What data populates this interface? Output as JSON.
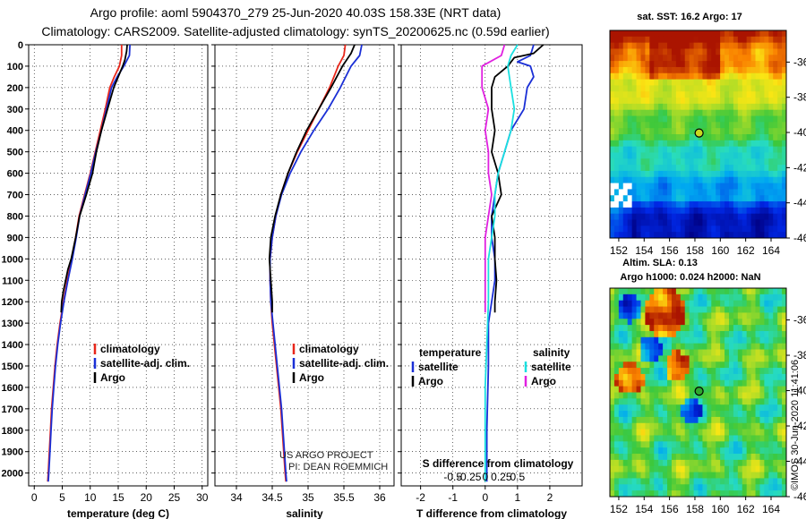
{
  "header": {
    "title_line1": "Argo profile: aoml 5904370_279 25-Jun-2020 40.03S 158.33E (NRT data)",
    "title_line2": "Climatology: CARS2009. Satellite-adjusted climatology: synTS_20200625.nc (0.59d earlier)"
  },
  "colors": {
    "climatology": "#e8261a",
    "satellite_adj": "#1a2fd6",
    "argo": "#000000",
    "satellite_salinity": "#19e0e0",
    "argo_salinity": "#e020e0"
  },
  "chart_data": [
    {
      "type": "line",
      "panel": "temperature",
      "xlabel": "temperature (deg C)",
      "xlim": [
        -1,
        31
      ],
      "x_ticks": [
        0,
        5,
        10,
        15,
        20,
        25,
        30
      ],
      "ylim": [
        2060,
        0
      ],
      "y_ticks": [
        0,
        100,
        200,
        300,
        400,
        500,
        600,
        700,
        800,
        900,
        1000,
        1100,
        1200,
        1300,
        1400,
        1500,
        1600,
        1700,
        1800,
        1900,
        2000
      ],
      "legend": [
        "climatology",
        "satellite-adj. clim.",
        "Argo"
      ],
      "series": [
        {
          "name": "climatology",
          "color": "#e8261a",
          "points": [
            [
              15.6,
              0
            ],
            [
              15.6,
              50
            ],
            [
              15.2,
              100
            ],
            [
              14.3,
              150
            ],
            [
              13.5,
              200
            ],
            [
              12.7,
              300
            ],
            [
              11.8,
              400
            ],
            [
              10.9,
              500
            ],
            [
              10.0,
              600
            ],
            [
              9.0,
              700
            ],
            [
              8.0,
              800
            ],
            [
              7.4,
              900
            ],
            [
              6.7,
              1000
            ],
            [
              5.9,
              1100
            ],
            [
              5.2,
              1200
            ],
            [
              4.6,
              1300
            ],
            [
              4.1,
              1400
            ],
            [
              3.7,
              1500
            ],
            [
              3.4,
              1600
            ],
            [
              3.1,
              1700
            ],
            [
              2.9,
              1800
            ],
            [
              2.7,
              1900
            ],
            [
              2.5,
              2000
            ],
            [
              2.4,
              2040
            ]
          ]
        },
        {
          "name": "satellite-adj. clim.",
          "color": "#1a2fd6",
          "points": [
            [
              17.1,
              0
            ],
            [
              17.0,
              50
            ],
            [
              16.0,
              100
            ],
            [
              14.8,
              150
            ],
            [
              13.8,
              200
            ],
            [
              12.9,
              300
            ],
            [
              12.0,
              400
            ],
            [
              11.0,
              500
            ],
            [
              10.1,
              600
            ],
            [
              9.1,
              700
            ],
            [
              8.1,
              800
            ],
            [
              7.5,
              900
            ],
            [
              6.8,
              1000
            ],
            [
              6.0,
              1100
            ],
            [
              5.3,
              1200
            ],
            [
              4.7,
              1300
            ],
            [
              4.2,
              1400
            ],
            [
              3.8,
              1500
            ],
            [
              3.5,
              1600
            ],
            [
              3.2,
              1700
            ],
            [
              3.0,
              1800
            ],
            [
              2.8,
              1900
            ],
            [
              2.6,
              2000
            ],
            [
              2.5,
              2040
            ]
          ]
        },
        {
          "name": "Argo",
          "color": "#000000",
          "points": [
            [
              16.6,
              0
            ],
            [
              16.5,
              30
            ],
            [
              16.2,
              70
            ],
            [
              15.8,
              100
            ],
            [
              15.0,
              150
            ],
            [
              14.2,
              200
            ],
            [
              13.1,
              300
            ],
            [
              12.0,
              400
            ],
            [
              11.1,
              500
            ],
            [
              10.4,
              600
            ],
            [
              9.3,
              700
            ],
            [
              8.1,
              800
            ],
            [
              7.4,
              900
            ],
            [
              6.6,
              1000
            ],
            [
              6.0,
              1050
            ],
            [
              5.6,
              1100
            ],
            [
              5.2,
              1150
            ],
            [
              4.9,
              1200
            ],
            [
              4.8,
              1250
            ]
          ]
        }
      ]
    },
    {
      "type": "line",
      "panel": "salinity",
      "xlabel": "salinity",
      "xlim": [
        33.7,
        36.2
      ],
      "x_ticks": [
        34,
        34.5,
        35,
        35.5,
        36
      ],
      "ylim": [
        2060,
        0
      ],
      "legend": [
        "climatology",
        "satellite-adj. clim.",
        "Argo"
      ],
      "annotation": [
        "US ARGO PROJECT",
        "PI: DEAN ROEMMICH"
      ],
      "series": [
        {
          "name": "climatology",
          "color": "#e8261a",
          "points": [
            [
              35.52,
              0
            ],
            [
              35.5,
              50
            ],
            [
              35.42,
              100
            ],
            [
              35.3,
              200
            ],
            [
              35.15,
              300
            ],
            [
              35.0,
              400
            ],
            [
              34.85,
              500
            ],
            [
              34.72,
              600
            ],
            [
              34.62,
              700
            ],
            [
              34.55,
              800
            ],
            [
              34.5,
              900
            ],
            [
              34.47,
              1000
            ],
            [
              34.47,
              1100
            ],
            [
              34.48,
              1200
            ],
            [
              34.5,
              1300
            ],
            [
              34.53,
              1400
            ],
            [
              34.56,
              1500
            ],
            [
              34.59,
              1600
            ],
            [
              34.62,
              1700
            ],
            [
              34.64,
              1800
            ],
            [
              34.66,
              1900
            ],
            [
              34.68,
              2000
            ],
            [
              34.69,
              2040
            ]
          ]
        },
        {
          "name": "satellite-adj. clim.",
          "color": "#1a2fd6",
          "points": [
            [
              35.75,
              0
            ],
            [
              35.72,
              50
            ],
            [
              35.6,
              100
            ],
            [
              35.45,
              200
            ],
            [
              35.28,
              300
            ],
            [
              35.08,
              400
            ],
            [
              34.9,
              500
            ],
            [
              34.75,
              600
            ],
            [
              34.63,
              700
            ],
            [
              34.55,
              800
            ],
            [
              34.5,
              900
            ],
            [
              34.47,
              1000
            ],
            [
              34.47,
              1100
            ],
            [
              34.48,
              1200
            ],
            [
              34.51,
              1300
            ],
            [
              34.54,
              1400
            ],
            [
              34.57,
              1500
            ],
            [
              34.6,
              1600
            ],
            [
              34.63,
              1700
            ],
            [
              34.65,
              1800
            ],
            [
              34.67,
              1900
            ],
            [
              34.69,
              2000
            ],
            [
              34.7,
              2040
            ]
          ]
        },
        {
          "name": "Argo",
          "color": "#000000",
          "points": [
            [
              35.65,
              0
            ],
            [
              35.6,
              40
            ],
            [
              35.48,
              100
            ],
            [
              35.32,
              200
            ],
            [
              35.15,
              300
            ],
            [
              34.98,
              400
            ],
            [
              34.84,
              500
            ],
            [
              34.72,
              600
            ],
            [
              34.62,
              700
            ],
            [
              34.54,
              800
            ],
            [
              34.48,
              900
            ],
            [
              34.46,
              1000
            ],
            [
              34.48,
              1100
            ],
            [
              34.5,
              1200
            ],
            [
              34.5,
              1250
            ]
          ]
        }
      ]
    },
    {
      "type": "line",
      "panel": "difference",
      "xlabel": "T difference from climatology",
      "xlim": [
        -2.6,
        3.0
      ],
      "x_ticks": [
        -2,
        -1,
        0,
        1,
        2
      ],
      "s_axis_label": "S difference from climatology",
      "s_ticks": [
        "-0.5",
        "-0.25",
        "0",
        "0.25",
        "0.5"
      ],
      "ylim": [
        2060,
        0
      ],
      "legend_left_title": "temperature",
      "legend_right_title": "salinity",
      "legend_left": [
        "satellite",
        "Argo"
      ],
      "legend_right": [
        "satellite",
        "Argo"
      ],
      "series": [
        {
          "name": "temperature satellite",
          "color": "#1a2fd6",
          "points": [
            [
              1.5,
              0
            ],
            [
              1.4,
              50
            ],
            [
              1.0,
              80
            ],
            [
              1.4,
              100
            ],
            [
              1.5,
              150
            ],
            [
              1.3,
              200
            ],
            [
              1.2,
              300
            ],
            [
              0.8,
              400
            ],
            [
              0.6,
              500
            ],
            [
              0.4,
              600
            ],
            [
              0.3,
              700
            ],
            [
              0.2,
              800
            ],
            [
              0.2,
              900
            ],
            [
              0.3,
              1000
            ],
            [
              0.3,
              1100
            ],
            [
              0.2,
              1200
            ],
            [
              0.1,
              1300
            ],
            [
              0.1,
              1500
            ],
            [
              0.05,
              1800
            ],
            [
              0.05,
              2040
            ]
          ]
        },
        {
          "name": "temperature Argo",
          "color": "#000000",
          "points": [
            [
              1.8,
              0
            ],
            [
              1.5,
              40
            ],
            [
              0.9,
              60
            ],
            [
              0.7,
              100
            ],
            [
              0.3,
              150
            ],
            [
              0.2,
              200
            ],
            [
              0.2,
              300
            ],
            [
              0.3,
              400
            ],
            [
              0.2,
              500
            ],
            [
              0.4,
              600
            ],
            [
              0.5,
              700
            ],
            [
              0.2,
              800
            ],
            [
              0.3,
              900
            ],
            [
              0.3,
              1000
            ],
            [
              0.35,
              1100
            ],
            [
              0.3,
              1200
            ],
            [
              0.3,
              1250
            ]
          ]
        },
        {
          "name": "salinity satellite",
          "color": "#19e0e0",
          "points": [
            [
              1.0,
              0
            ],
            [
              0.8,
              50
            ],
            [
              0.7,
              100
            ],
            [
              0.8,
              200
            ],
            [
              0.9,
              300
            ],
            [
              0.8,
              400
            ],
            [
              0.6,
              500
            ],
            [
              0.4,
              600
            ],
            [
              0.3,
              700
            ],
            [
              0.3,
              800
            ],
            [
              0.2,
              900
            ],
            [
              0.1,
              1000
            ],
            [
              0.1,
              1200
            ],
            [
              0.05,
              1400
            ],
            [
              0.0,
              1600
            ],
            [
              0.0,
              2040
            ]
          ]
        },
        {
          "name": "salinity Argo",
          "color": "#e020e0",
          "points": [
            [
              0.6,
              0
            ],
            [
              0.5,
              50
            ],
            [
              -0.1,
              100
            ],
            [
              -0.1,
              200
            ],
            [
              0.1,
              300
            ],
            [
              0.0,
              400
            ],
            [
              0.1,
              500
            ],
            [
              0.1,
              600
            ],
            [
              0.2,
              700
            ],
            [
              0.1,
              800
            ],
            [
              0.0,
              900
            ],
            [
              0.0,
              1000
            ],
            [
              0.0,
              1100
            ],
            [
              0.0,
              1200
            ],
            [
              0.0,
              1250
            ]
          ]
        }
      ]
    },
    {
      "type": "heatmap",
      "panel": "sst_map",
      "title": "sat. SST: 16.2 Argo: 17",
      "x_ticks": [
        "152",
        "154",
        "156",
        "158",
        "160",
        "162",
        "164"
      ],
      "y_ticks": [
        "-36",
        "-38",
        "-40",
        "-42",
        "-44",
        "-46"
      ],
      "xlim": [
        151.3,
        165.2
      ],
      "ylim": [
        -46,
        -34.2
      ],
      "argo_position": {
        "lon": 158.33,
        "lat": -40.03
      }
    },
    {
      "type": "heatmap",
      "panel": "sla_map",
      "title_line1": "Altim. SLA: 0.13",
      "title_line2": "Argo h1000: 0.024 h2000: NaN",
      "x_ticks": [
        "152",
        "154",
        "156",
        "158",
        "160",
        "162",
        "164"
      ],
      "y_ticks": [
        "-36",
        "-38",
        "-40",
        "-42",
        "-44",
        "-46"
      ],
      "xlim": [
        151.3,
        165.2
      ],
      "ylim": [
        -46,
        -34.2
      ],
      "argo_position": {
        "lon": 158.33,
        "lat": -40.03
      }
    }
  ],
  "credit": "©IMOS 30-Jun-2020 11:41:06"
}
